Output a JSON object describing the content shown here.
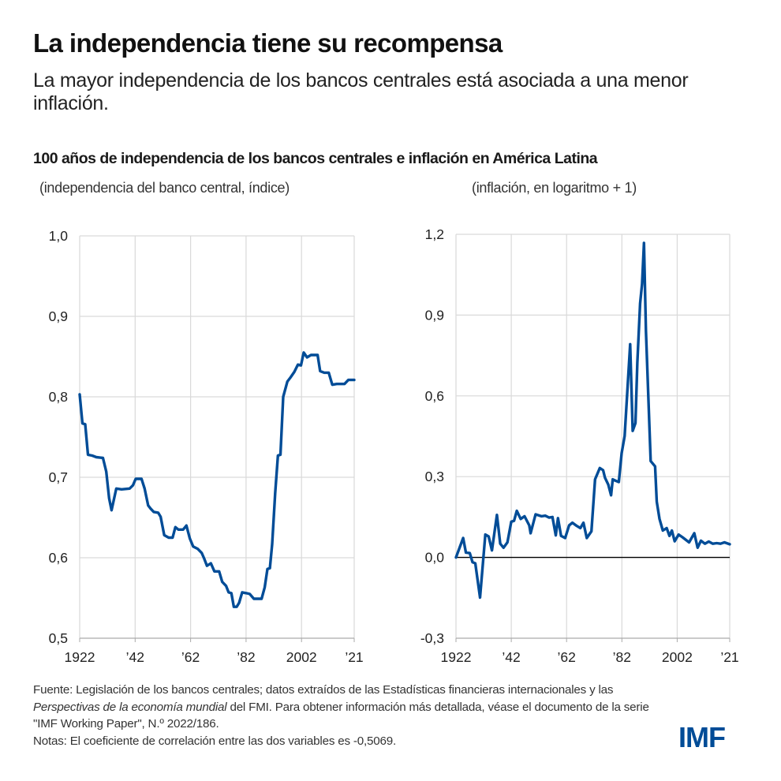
{
  "header": {
    "title": "La independencia tiene su recompensa",
    "subtitle": "La mayor independencia de los bancos centrales está asociada a una menor inflación."
  },
  "figure_title": "100 años de independencia de los bancos centrales e inflación en América Latina",
  "colors": {
    "line": "#004c97",
    "grid": "#d9d9d9",
    "zero_line": "#000000",
    "logo": "#004c97"
  },
  "chart_data": [
    {
      "type": "line",
      "title": "",
      "ylabel": "(independencia del banco central, índice)",
      "xlabel": "",
      "xlim": [
        1922,
        2021
      ],
      "ylim": [
        0.5,
        1.0
      ],
      "grid": true,
      "x_ticks": [
        1922,
        1942,
        1962,
        1982,
        2002,
        2021
      ],
      "x_tick_labels": [
        "1922",
        "’42",
        "’62",
        "’82",
        "2002",
        "’21"
      ],
      "y_ticks": [
        0.5,
        0.6,
        0.7,
        0.8,
        0.9,
        1.0
      ],
      "y_tick_labels": [
        "0,5",
        "0,6",
        "0,7",
        "0,8",
        "0,9",
        "1,0"
      ],
      "series": [
        {
          "name": "Independencia del banco central",
          "x": [
            1922,
            1923,
            1924,
            1925,
            1926.5,
            1928,
            1930.4,
            1931.6,
            1932.6,
            1933.5,
            1935.2,
            1937.1,
            1940,
            1941.2,
            1942.2,
            1944.3,
            1945.4,
            1946.7,
            1947.6,
            1948.7,
            1950.3,
            1951.2,
            1952.5,
            1954.1,
            1955.5,
            1956.5,
            1957.6,
            1959.3,
            1960.5,
            1961.7,
            1962.9,
            1964.6,
            1966,
            1966.9,
            1967.9,
            1969.3,
            1970.6,
            1972.3,
            1973.4,
            1974.8,
            1975.7,
            1976.7,
            1977.6,
            1978.6,
            1979.5,
            1980.6,
            1982.1,
            1983.3,
            1984.8,
            1987.6,
            1988.7,
            1989.7,
            1990.6,
            1991.4,
            1992.5,
            1993.5,
            1994.4,
            1995.4,
            1996.9,
            1998,
            1999.4,
            2000.7,
            2001.8,
            2002.8,
            2004,
            2005.4,
            2007.8,
            2008.7,
            2010.2,
            2011.8,
            2013.1,
            2014.7,
            2017.5,
            2018.9,
            2021
          ],
          "values": [
            0.803,
            0.767,
            0.766,
            0.728,
            0.727,
            0.725,
            0.724,
            0.707,
            0.674,
            0.659,
            0.686,
            0.685,
            0.686,
            0.69,
            0.698,
            0.698,
            0.686,
            0.665,
            0.661,
            0.657,
            0.656,
            0.651,
            0.628,
            0.625,
            0.625,
            0.638,
            0.635,
            0.635,
            0.64,
            0.624,
            0.614,
            0.611,
            0.606,
            0.599,
            0.59,
            0.593,
            0.583,
            0.583,
            0.57,
            0.565,
            0.557,
            0.556,
            0.539,
            0.539,
            0.544,
            0.557,
            0.556,
            0.555,
            0.549,
            0.549,
            0.563,
            0.586,
            0.587,
            0.617,
            0.68,
            0.727,
            0.728,
            0.8,
            0.819,
            0.824,
            0.831,
            0.84,
            0.839,
            0.855,
            0.849,
            0.852,
            0.852,
            0.832,
            0.83,
            0.83,
            0.815,
            0.816,
            0.816,
            0.821,
            0.821
          ]
        }
      ]
    },
    {
      "type": "line",
      "title": "",
      "ylabel": "(inflación, en logaritmo + 1)",
      "xlabel": "",
      "xlim": [
        1922,
        2021
      ],
      "ylim": [
        -0.3,
        1.2
      ],
      "grid": true,
      "zero_line": 0.0,
      "x_ticks": [
        1922,
        1942,
        1962,
        1982,
        2002,
        2021
      ],
      "x_tick_labels": [
        "1922",
        "’42",
        "’62",
        "’82",
        "2002",
        "’21"
      ],
      "y_ticks": [
        -0.3,
        0.0,
        0.3,
        0.6,
        0.9,
        1.2
      ],
      "y_tick_labels": [
        "-0,3",
        "0,0",
        "0,3",
        "0,6",
        "0,9",
        "1,2"
      ],
      "series": [
        {
          "name": "Inflación",
          "x": [
            1922,
            1924.6,
            1925.6,
            1927,
            1928,
            1929,
            1930.7,
            1932.6,
            1933.8,
            1935,
            1936.8,
            1938,
            1939.2,
            1940.6,
            1942,
            1943,
            1944,
            1945.4,
            1946.8,
            1948.5,
            1949,
            1950.8,
            1952.9,
            1954.3,
            1955.7,
            1956.9,
            1958.1,
            1958.9,
            1960,
            1961.5,
            1962.9,
            1964.1,
            1965.7,
            1967,
            1968.1,
            1969.3,
            1971,
            1972.3,
            1974,
            1975.2,
            1975.9,
            1977.1,
            1978.1,
            1978.7,
            1979.7,
            1980.9,
            1981.9,
            1983,
            1985,
            1985.9,
            1986.9,
            1987.6,
            1988.6,
            1989.3,
            1990,
            1990.7,
            1992.4,
            1994,
            1994.6,
            1995.6,
            1996.8,
            1998.2,
            1999.2,
            2000.1,
            2001.1,
            2002.5,
            2003.9,
            2006.3,
            2008.2,
            2009.4,
            2010.6,
            2012,
            2013.4,
            2014.9,
            2016.3,
            2017.7,
            2019.1,
            2021
          ],
          "values": [
            0.0,
            0.072,
            0.018,
            0.016,
            -0.018,
            -0.022,
            -0.149,
            0.085,
            0.078,
            0.026,
            0.158,
            0.051,
            0.036,
            0.056,
            0.133,
            0.136,
            0.173,
            0.143,
            0.153,
            0.119,
            0.09,
            0.16,
            0.153,
            0.155,
            0.148,
            0.15,
            0.082,
            0.146,
            0.08,
            0.072,
            0.119,
            0.129,
            0.117,
            0.109,
            0.129,
            0.072,
            0.097,
            0.29,
            0.332,
            0.324,
            0.296,
            0.27,
            0.231,
            0.29,
            0.285,
            0.28,
            0.387,
            0.451,
            0.792,
            0.47,
            0.499,
            0.724,
            0.943,
            1.016,
            1.168,
            0.841,
            0.358,
            0.338,
            0.207,
            0.143,
            0.1,
            0.109,
            0.08,
            0.1,
            0.06,
            0.085,
            0.075,
            0.056,
            0.09,
            0.036,
            0.062,
            0.051,
            0.059,
            0.051,
            0.053,
            0.051,
            0.056,
            0.049
          ]
        }
      ]
    }
  ],
  "footer": {
    "source_prefix": "Fuente: Legislación de los bancos centrales; datos extraídos de las Estadísticas financieras internacionales y las ",
    "source_italic": "Perspectivas de la economía mundial",
    "source_suffix": " del FMI. Para obtener información más detallada, véase el documento de la serie \"IMF Working Paper\", N.º 2022/186.",
    "notes": "Notas: El coeficiente de correlación entre las dos variables es -0,5069."
  },
  "logo": {
    "text": "IMF"
  }
}
